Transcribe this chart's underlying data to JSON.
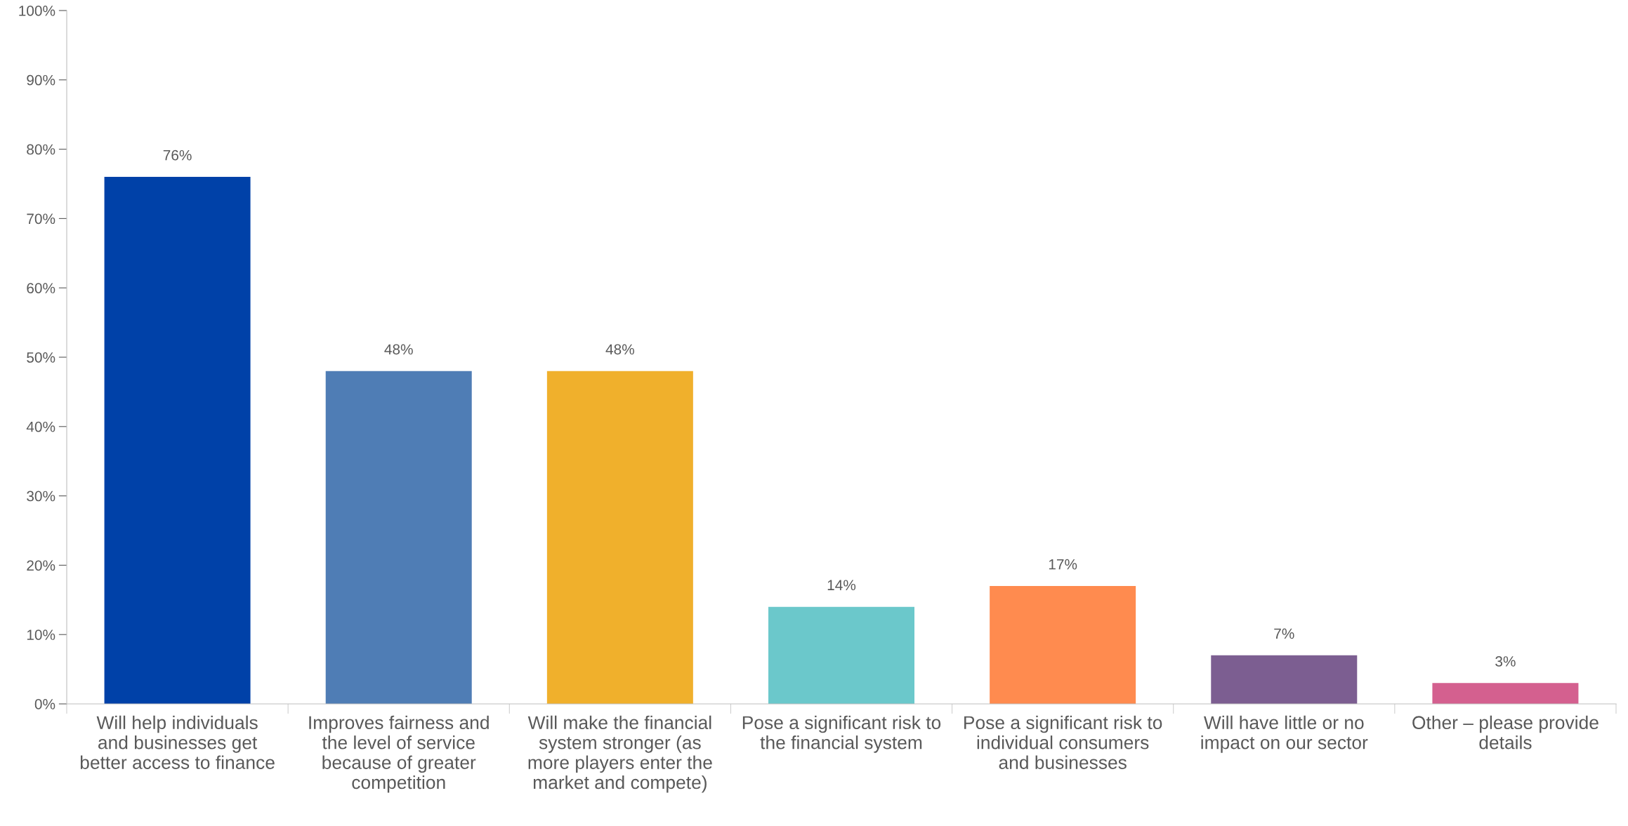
{
  "chart_data": {
    "type": "bar",
    "categories": [
      "Will help individuals\nand businesses get\nbetter access to finance",
      "Improves fairness and\nthe level of service\nbecause of greater\ncompetition",
      "Will make the financial\nsystem stronger (as\nmore players enter the\nmarket and compete)",
      "Pose a significant risk to\nthe financial system",
      "Pose a significant risk to\nindividual consumers\nand businesses",
      "Will have little or no\nimpact on our sector",
      "Other – please provide\ndetails"
    ],
    "values": [
      76,
      48,
      48,
      14,
      17,
      7,
      3
    ],
    "colors": [
      "#0041a8",
      "#4f7db5",
      "#f0b02c",
      "#6bc8cb",
      "#ff8b4f",
      "#7c5e91",
      "#d4608f"
    ],
    "value_labels": [
      "76%",
      "48%",
      "48%",
      "14%",
      "17%",
      "7%",
      "3%"
    ],
    "ylim": [
      0,
      100
    ],
    "yticks": [
      {
        "value": 0,
        "label": "0%"
      },
      {
        "value": 10,
        "label": "10%"
      },
      {
        "value": 20,
        "label": "20%"
      },
      {
        "value": 30,
        "label": "30%"
      },
      {
        "value": 40,
        "label": "40%"
      },
      {
        "value": 50,
        "label": "50%"
      },
      {
        "value": 60,
        "label": "60%"
      },
      {
        "value": 70,
        "label": "70%"
      },
      {
        "value": 80,
        "label": "80%"
      },
      {
        "value": 90,
        "label": "90%"
      },
      {
        "value": 100,
        "label": "100%"
      }
    ],
    "grid": false,
    "legend": false
  }
}
